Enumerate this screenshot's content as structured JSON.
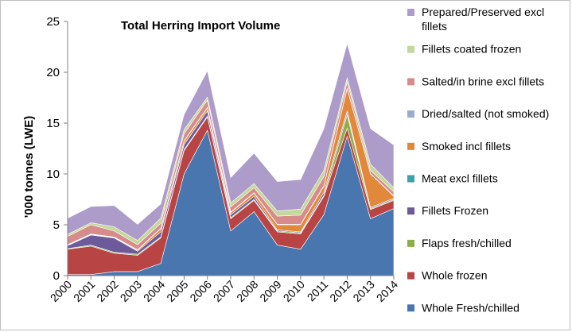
{
  "chart_data": {
    "type": "area",
    "stacked": true,
    "title": "Total Herring Import Volume",
    "xlabel": "",
    "ylabel": "'000 tonnes (LWE)",
    "ylim": [
      0,
      25
    ],
    "yticks": [
      0,
      5,
      10,
      15,
      20,
      25
    ],
    "grid": false,
    "legend_position": "right",
    "x": [
      "2000",
      "2001",
      "2002",
      "2003",
      "2004",
      "2005",
      "2006",
      "2007",
      "2008",
      "2009",
      "2010",
      "2011",
      "2012",
      "2013",
      "2014"
    ],
    "series": [
      {
        "name": "Whole Fresh/chilled",
        "color": "#4a76b0",
        "values": [
          0.1,
          0.1,
          0.4,
          0.4,
          1.2,
          10.0,
          14.3,
          4.4,
          6.3,
          3.0,
          2.6,
          6.0,
          13.7,
          5.6,
          6.6
        ]
      },
      {
        "name": "Whole frozen",
        "color": "#b94444",
        "values": [
          2.5,
          2.8,
          1.8,
          1.6,
          2.5,
          2.3,
          1.3,
          1.2,
          1.1,
          1.3,
          1.5,
          1.8,
          0.8,
          0.9,
          0.8
        ]
      },
      {
        "name": "Flaps fresh/chilled",
        "color": "#8fae4a",
        "values": [
          0.05,
          0.1,
          0.1,
          0.1,
          0.1,
          0.1,
          0.1,
          0.1,
          0.1,
          0.1,
          0.1,
          0.1,
          1.3,
          0.1,
          0.1
        ]
      },
      {
        "name": "Fillets Frozen",
        "color": "#6c5a9a",
        "values": [
          0.3,
          1.0,
          1.4,
          0.3,
          0.5,
          0.5,
          0.5,
          0.3,
          0.3,
          0.1,
          0.1,
          0.3,
          0.3,
          0.1,
          0.1
        ]
      },
      {
        "name": "Meat excl fillets",
        "color": "#3d9fb0",
        "values": [
          0.0,
          0.0,
          0.0,
          0.0,
          0.0,
          0.0,
          0.0,
          0.0,
          0.0,
          0.0,
          0.0,
          0.0,
          0.1,
          0.0,
          0.0
        ]
      },
      {
        "name": "Smoked incl fillets",
        "color": "#e2883a",
        "values": [
          0.05,
          0.05,
          0.05,
          0.1,
          0.3,
          0.3,
          0.3,
          0.2,
          0.3,
          0.5,
          0.7,
          0.6,
          2.2,
          3.3,
          0.2
        ]
      },
      {
        "name": "Dried/salted (not smoked)",
        "color": "#98acd2",
        "values": [
          0.05,
          0.05,
          0.05,
          0.05,
          0.05,
          0.05,
          0.05,
          0.05,
          0.05,
          0.05,
          0.05,
          0.05,
          0.05,
          0.05,
          0.05
        ]
      },
      {
        "name": "Salted/in brine excl fillets",
        "color": "#d88b8b",
        "values": [
          0.8,
          0.9,
          0.6,
          0.5,
          0.5,
          0.7,
          0.7,
          0.5,
          0.5,
          0.8,
          0.9,
          0.9,
          0.6,
          0.3,
          0.4
        ]
      },
      {
        "name": "Fillets coated frozen",
        "color": "#c3d89a",
        "values": [
          0.2,
          0.2,
          0.4,
          0.4,
          0.5,
          0.4,
          0.3,
          0.4,
          0.4,
          0.5,
          0.6,
          0.6,
          0.4,
          0.6,
          0.4
        ]
      },
      {
        "name": "Prepared/Preserved excl fillets",
        "color": "#ad9cc9",
        "values": [
          1.6,
          1.6,
          2.1,
          1.6,
          1.4,
          1.5,
          2.6,
          2.5,
          3.0,
          2.9,
          2.9,
          4.1,
          3.4,
          3.5,
          4.2
        ]
      }
    ]
  }
}
